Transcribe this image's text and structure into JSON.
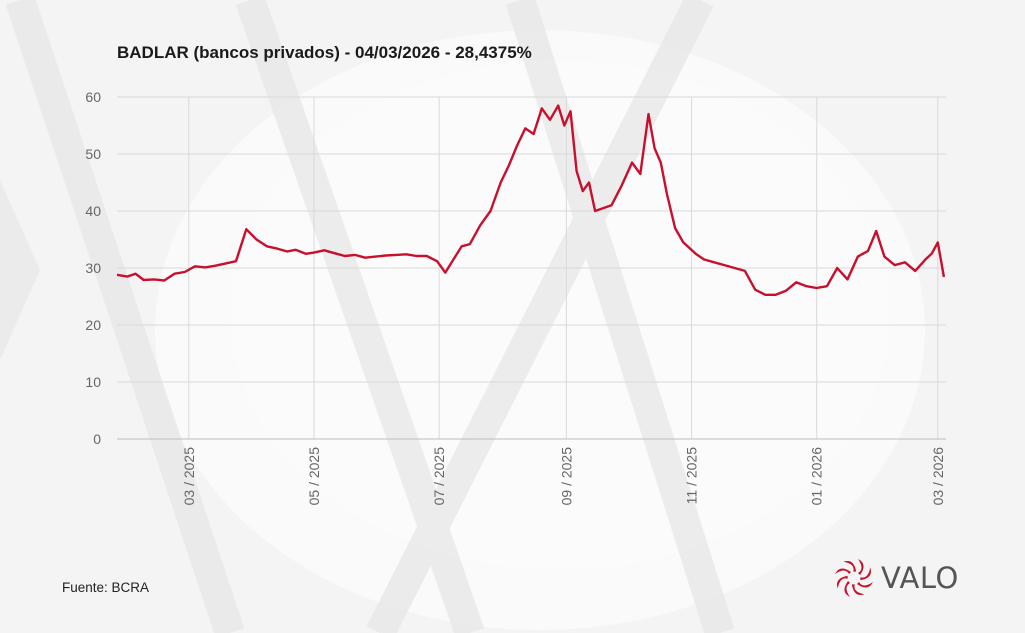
{
  "title": "BADLAR (bancos privados) - 04/03/2026 - 28,4375%",
  "source": "Fuente: BCRA",
  "logo": {
    "text": "VALO",
    "icon": "valo-logo-icon"
  },
  "colors": {
    "line": "#c8102e",
    "grid": "#d9d9d9",
    "axis_text": "#666666",
    "logo_red": "#c8102e"
  },
  "chart_data": {
    "type": "line",
    "title": "BADLAR (bancos privados) - 04/03/2026 - 28,4375%",
    "xlabel": "",
    "ylabel": "",
    "ylim": [
      0,
      60
    ],
    "yticks": [
      0,
      10,
      20,
      30,
      40,
      50,
      60
    ],
    "xlim": [
      "2025-01-25",
      "2026-03-05"
    ],
    "xticks": [
      {
        "date": "2025-03-01",
        "label": "03 / 2025"
      },
      {
        "date": "2025-05-01",
        "label": "05 / 2025"
      },
      {
        "date": "2025-07-01",
        "label": "07 / 2025"
      },
      {
        "date": "2025-09-01",
        "label": "09 / 2025"
      },
      {
        "date": "2025-11-01",
        "label": "11 / 2025"
      },
      {
        "date": "2026-01-01",
        "label": "01 / 2026"
      },
      {
        "date": "2026-03-01",
        "label": "03 / 2026"
      }
    ],
    "grid": true,
    "series": [
      {
        "x": [
          "2025-01-25",
          "2025-01-30",
          "2025-02-03",
          "2025-02-07",
          "2025-02-12",
          "2025-02-17",
          "2025-02-22",
          "2025-02-27",
          "2025-03-04",
          "2025-03-09",
          "2025-03-14",
          "2025-03-19",
          "2025-03-24",
          "2025-03-29",
          "2025-04-03",
          "2025-04-08",
          "2025-04-13",
          "2025-04-18",
          "2025-04-22",
          "2025-04-27",
          "2025-05-01",
          "2025-05-06",
          "2025-05-11",
          "2025-05-16",
          "2025-05-21",
          "2025-05-26",
          "2025-05-31",
          "2025-06-05",
          "2025-06-10",
          "2025-06-15",
          "2025-06-20",
          "2025-06-25",
          "2025-06-30",
          "2025-07-04",
          "2025-07-08",
          "2025-07-12",
          "2025-07-16",
          "2025-07-21",
          "2025-07-26",
          "2025-07-31",
          "2025-08-04",
          "2025-08-08",
          "2025-08-12",
          "2025-08-16",
          "2025-08-20",
          "2025-08-24",
          "2025-08-28",
          "2025-08-31",
          "2025-09-03",
          "2025-09-06",
          "2025-09-09",
          "2025-09-12",
          "2025-09-15",
          "2025-09-19",
          "2025-09-23",
          "2025-09-28",
          "2025-10-03",
          "2025-10-07",
          "2025-10-11",
          "2025-10-14",
          "2025-10-17",
          "2025-10-20",
          "2025-10-24",
          "2025-10-28",
          "2025-10-31",
          "2025-11-03",
          "2025-11-07",
          "2025-11-12",
          "2025-11-17",
          "2025-11-22",
          "2025-11-27",
          "2025-12-02",
          "2025-12-07",
          "2025-12-12",
          "2025-12-17",
          "2025-12-22",
          "2025-12-27",
          "2026-01-01",
          "2026-01-06",
          "2026-01-11",
          "2026-01-16",
          "2026-01-21",
          "2026-01-26",
          "2026-01-30",
          "2026-02-03",
          "2026-02-08",
          "2026-02-13",
          "2026-02-18",
          "2026-02-23",
          "2026-02-26",
          "2026-03-01",
          "2026-03-04"
        ],
        "y": [
          28.8,
          28.5,
          29.0,
          27.9,
          28.0,
          27.8,
          29.0,
          29.3,
          30.3,
          30.1,
          30.4,
          30.8,
          31.2,
          36.8,
          35.0,
          33.8,
          33.4,
          32.9,
          33.2,
          32.5,
          32.7,
          33.1,
          32.6,
          32.1,
          32.3,
          31.8,
          32.0,
          32.2,
          32.3,
          32.4,
          32.1,
          32.1,
          31.2,
          29.2,
          31.5,
          33.8,
          34.2,
          37.5,
          40.0,
          45.0,
          48.0,
          51.5,
          54.5,
          53.5,
          58.0,
          56.0,
          58.5,
          55.0,
          57.5,
          47.0,
          43.5,
          45.0,
          40.0,
          40.5,
          41.0,
          44.5,
          48.5,
          46.5,
          57.0,
          51.0,
          48.5,
          43.0,
          37.0,
          34.5,
          33.5,
          32.5,
          31.5,
          31.0,
          30.5,
          30.0,
          29.5,
          26.2,
          25.3,
          25.3,
          26.0,
          27.5,
          26.8,
          26.5,
          26.8,
          30.0,
          28.0,
          32.0,
          33.0,
          36.5,
          32.0,
          30.5,
          31.0,
          29.5,
          31.5,
          32.5,
          34.5,
          28.4375
        ]
      }
    ]
  }
}
